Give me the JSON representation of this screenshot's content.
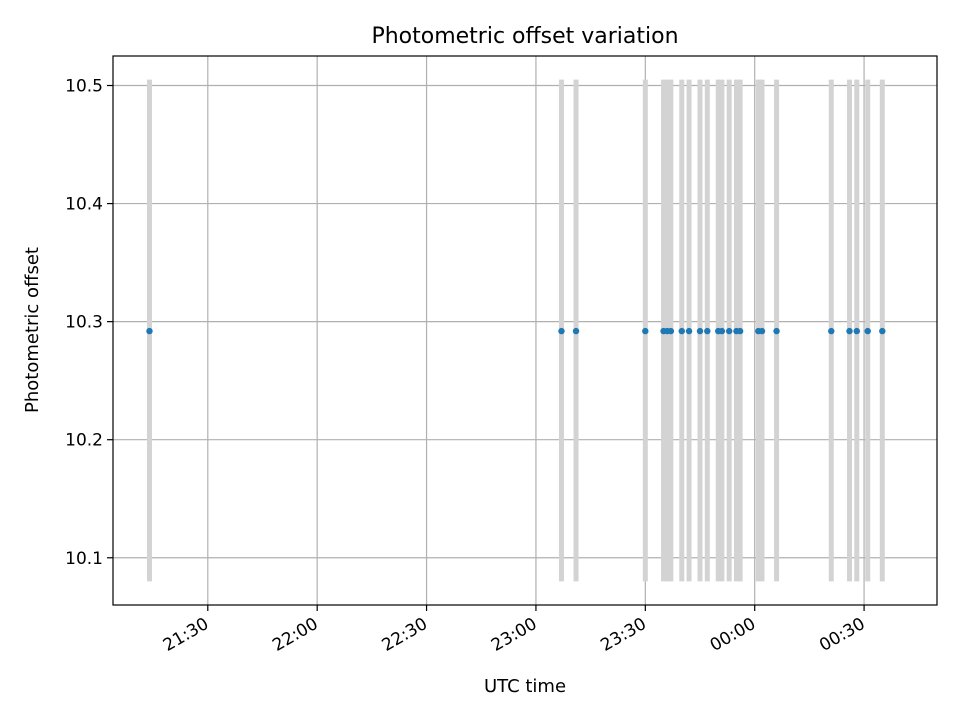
{
  "chart_data": {
    "type": "scatter",
    "title": "Photometric offset variation",
    "xlabel": "UTC time",
    "ylabel": "Photometric offset",
    "xlim": [
      "21:04",
      "00:50"
    ],
    "ylim": [
      10.06,
      10.525
    ],
    "x_ticks": [
      "21:30",
      "22:00",
      "22:30",
      "23:00",
      "23:30",
      "00:00",
      "00:30"
    ],
    "y_ticks": [
      10.1,
      10.2,
      10.3,
      10.4,
      10.5
    ],
    "grid": true,
    "legend": "none",
    "series": [
      {
        "x": [
          "21:14",
          "23:07",
          "23:11",
          "23:30",
          "23:35",
          "23:36",
          "23:37",
          "23:40",
          "23:42",
          "23:45",
          "23:47",
          "23:50",
          "23:51",
          "23:53",
          "23:55",
          "23:56",
          "00:01",
          "00:02",
          "00:06",
          "00:21",
          "00:26",
          "00:28",
          "00:31",
          "00:35"
        ],
        "y": [
          10.292,
          10.292,
          10.292,
          10.292,
          10.292,
          10.292,
          10.292,
          10.292,
          10.292,
          10.292,
          10.292,
          10.292,
          10.292,
          10.292,
          10.292,
          10.292,
          10.292,
          10.292,
          10.292,
          10.292,
          10.292,
          10.292,
          10.292,
          10.292
        ],
        "err_low": 10.08,
        "err_high": 10.505
      }
    ],
    "colors": {
      "points": "#1f77b4",
      "errorbars": "#d3d3d3",
      "grid": "#b0b0b0"
    }
  }
}
